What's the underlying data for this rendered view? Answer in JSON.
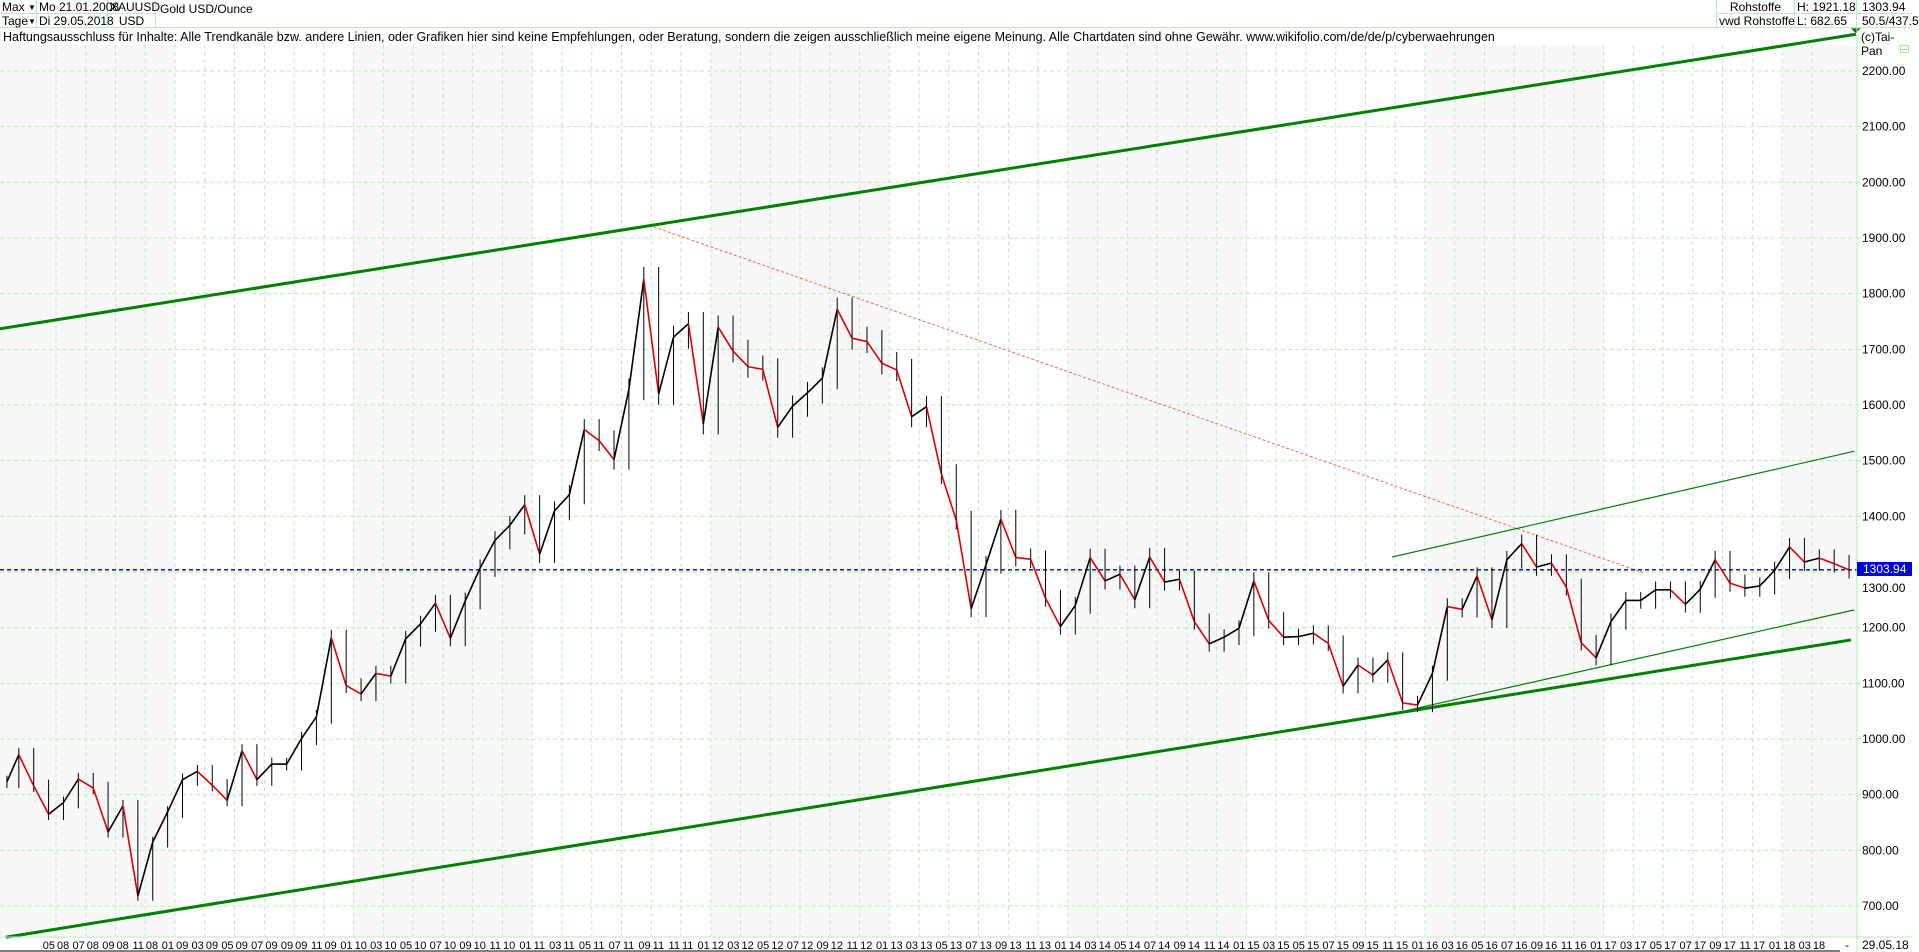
{
  "header": {
    "period": "Max",
    "interval": "Tage",
    "start_date": "Mo 21.01.2008",
    "end_date": "Di 29.05.2018",
    "symbol": "XAUUSD",
    "currency": "USD",
    "name": "Gold USD/Ounce",
    "source1": "Rohstoffe",
    "source2": "vwd Rohstoffe",
    "high": "H: 1921.18",
    "low": "L: 682.65",
    "last": "1303.94",
    "scale": "50.5/437.5",
    "copyright": "(c)Tai-Pan",
    "dropdown_icon": "triangle-down"
  },
  "disclaimer": "Haftungsausschluss für Inhalte: Alle Trendkanäle bzw. andere Linien, oder Grafiken hier sind keine Empfehlungen, oder Beratung, sondern die zeigen ausschließlich meine eigene Meinung. Alle Chartdaten sind ohne Gewähr.  www.wikifolio.com/de/de/p/cyberwaehrungen",
  "colors": {
    "grid": "#b8eeb8",
    "trend": "#008000",
    "resistance": "#ff6060",
    "price_up": "#000000",
    "price_down": "#e00000",
    "last_line": "#0000b0",
    "last_tag": "#0000d8"
  },
  "chart_data": {
    "type": "line",
    "title": "Gold USD/Ounce",
    "ylim": [
      650,
      2280
    ],
    "grid": true,
    "y_ticks": [
      "700.00",
      "800.00",
      "900.00",
      "1000.00",
      "1100.00",
      "1200.00",
      "1300.00",
      "1400.00",
      "1500.00",
      "1600.00",
      "1700.00",
      "1800.00",
      "1900.00",
      "2000.00",
      "2100.00",
      "2200.00"
    ],
    "x_ticks": [
      "05 08",
      "07 08",
      "09 08",
      "11 08",
      "01 09",
      "03 09",
      "05 09",
      "07 09",
      "09 09",
      "11 09",
      "01 10",
      "03 10",
      "05 10",
      "07 10",
      "09 10",
      "11 10",
      "01 11",
      "03 11",
      "05 11",
      "07 11",
      "09 11",
      "11 11",
      "01 12",
      "03 12",
      "05 12",
      "07 12",
      "09 12",
      "11 12",
      "01 13",
      "03 13",
      "05 13",
      "07 13",
      "09 13",
      "11 13",
      "01 14",
      "03 14",
      "05 14",
      "07 14",
      "09 14",
      "11 14",
      "01 15",
      "03 15",
      "05 15",
      "07 15",
      "09 15",
      "11 15",
      "01 16",
      "03 16",
      "05 16",
      "07 16",
      "09 16",
      "11 16",
      "01 17",
      "03 17",
      "05 17",
      "07 17",
      "09 17",
      "11 17",
      "01 18",
      "03 18"
    ],
    "x_range_end_label": "29.05.18",
    "x_range_dash": "-",
    "series_start_month": "2008-01",
    "monthly_close": [
      923,
      972,
      916,
      865,
      886,
      928,
      912,
      833,
      880,
      718,
      815,
      869,
      927,
      942,
      917,
      890,
      979,
      927,
      955,
      955,
      1001,
      1040,
      1182,
      1096,
      1081,
      1118,
      1113,
      1180,
      1207,
      1244,
      1181,
      1248,
      1307,
      1357,
      1384,
      1421,
      1332,
      1410,
      1439,
      1556,
      1536,
      1502,
      1628,
      1826,
      1620,
      1722,
      1746,
      1566,
      1740,
      1697,
      1669,
      1664,
      1560,
      1598,
      1622,
      1648,
      1772,
      1720,
      1714,
      1675,
      1663,
      1579,
      1597,
      1476,
      1393,
      1234,
      1313,
      1395,
      1326,
      1323,
      1253,
      1202,
      1240,
      1326,
      1284,
      1296,
      1250,
      1327,
      1282,
      1287,
      1211,
      1171,
      1183,
      1199,
      1284,
      1213,
      1183,
      1184,
      1190,
      1172,
      1095,
      1133,
      1115,
      1142,
      1065,
      1061,
      1118,
      1238,
      1233,
      1293,
      1214,
      1322,
      1351,
      1309,
      1316,
      1273,
      1173,
      1146,
      1211,
      1249,
      1249,
      1268,
      1268,
      1242,
      1269,
      1322,
      1280,
      1271,
      1275,
      1303,
      1345,
      1318,
      1325,
      1315,
      1303.94
    ],
    "last_value": 1303.94,
    "last_value_label": "1303.94",
    "trendlines": [
      {
        "kind": "upper-channel",
        "style": "thick",
        "start": {
          "date": "2008-01-08",
          "price": 1737
        },
        "end": {
          "date": "2018-05-30",
          "price": 2266
        }
      },
      {
        "kind": "lower-channel",
        "style": "thick",
        "start": {
          "date": "2008-01-20",
          "price": 644
        },
        "end": {
          "date": "2018-05-20",
          "price": 1178
        }
      },
      {
        "kind": "resistance",
        "style": "dashed",
        "start": {
          "date": "2011-09-06",
          "price": 1920
        },
        "end": {
          "date": "2017-03-24",
          "price": 1298
        }
      },
      {
        "kind": "short-channel-upper",
        "style": "thin",
        "start": {
          "date": "2015-10-25",
          "price": 1327
        },
        "end": {
          "date": "2018-05-27",
          "price": 1517
        }
      },
      {
        "kind": "short-channel-lower",
        "style": "thin",
        "start": {
          "date": "2015-11-28",
          "price": 1052
        },
        "end": {
          "date": "2018-05-27",
          "price": 1232
        }
      }
    ]
  }
}
